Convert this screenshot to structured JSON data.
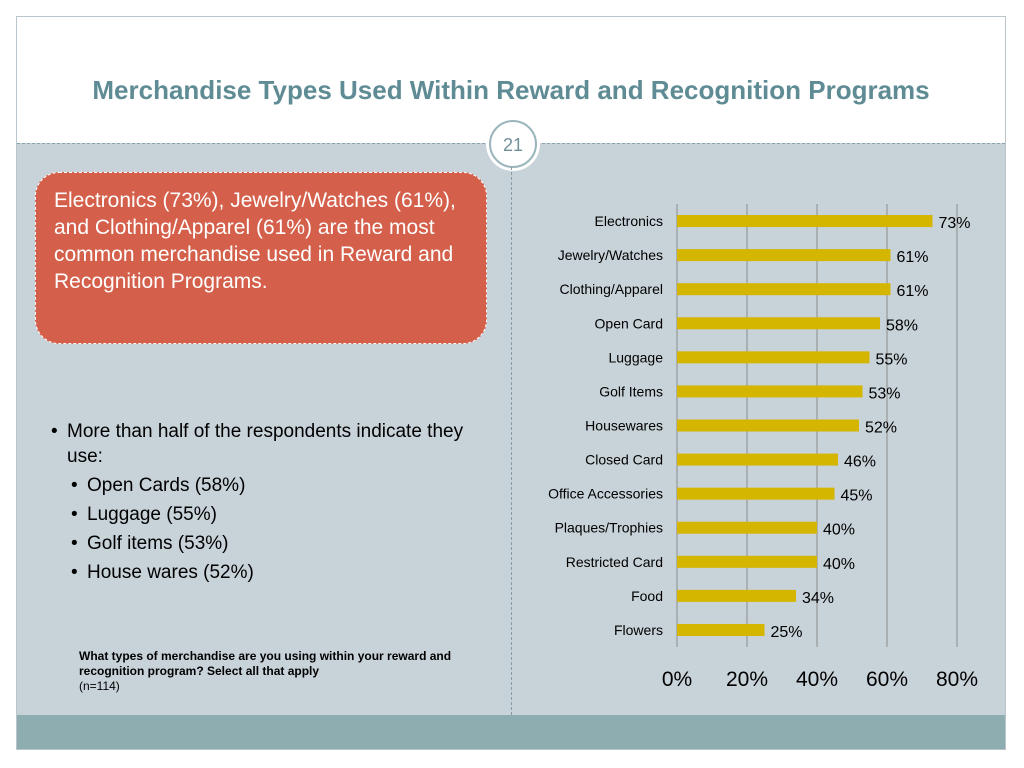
{
  "slide": {
    "title": "Merchandise Types Used Within Reward and Recognition Programs",
    "number": "21"
  },
  "callout": {
    "text": "Electronics (73%), Jewelry/Watches (61%), and Clothing/Apparel (61%) are the most common merchandise used in Reward and Recognition Programs."
  },
  "bullets": {
    "main": "More than half of the respondents indicate they use:",
    "sub": [
      "Open Cards (58%)",
      "Luggage (55%)",
      "Golf items (53%)",
      "House wares (52%)"
    ]
  },
  "question": {
    "text": "What types of merchandise are you using within your reward and recognition program?  Select all that apply",
    "n": "(n=114)"
  },
  "colors": {
    "bar": "#d4b500",
    "title": "#5f8b94",
    "callout": "#d4604b",
    "background": "#c8d2d9",
    "footer": "#8eadb0"
  },
  "chart_data": {
    "type": "bar",
    "orientation": "horizontal",
    "categories": [
      "Electronics",
      "Jewelry/Watches",
      "Clothing/Apparel",
      "Open Card",
      "Luggage",
      "Golf Items",
      "Housewares",
      "Closed Card",
      "Office Accessories",
      "Plaques/Trophies",
      "Restricted Card",
      "Food",
      "Flowers"
    ],
    "values": [
      73,
      61,
      61,
      58,
      55,
      53,
      52,
      46,
      45,
      40,
      40,
      34,
      25
    ],
    "value_labels": [
      "73%",
      "61%",
      "61%",
      "58%",
      "55%",
      "53%",
      "52%",
      "46%",
      "45%",
      "40%",
      "40%",
      "34%",
      "25%"
    ],
    "xlim": [
      0,
      80
    ],
    "x_ticks": [
      0,
      20,
      40,
      60,
      80
    ],
    "x_tick_labels": [
      "0%",
      "20%",
      "40%",
      "60%",
      "80%"
    ],
    "grid": "vertical",
    "legend": "none"
  }
}
